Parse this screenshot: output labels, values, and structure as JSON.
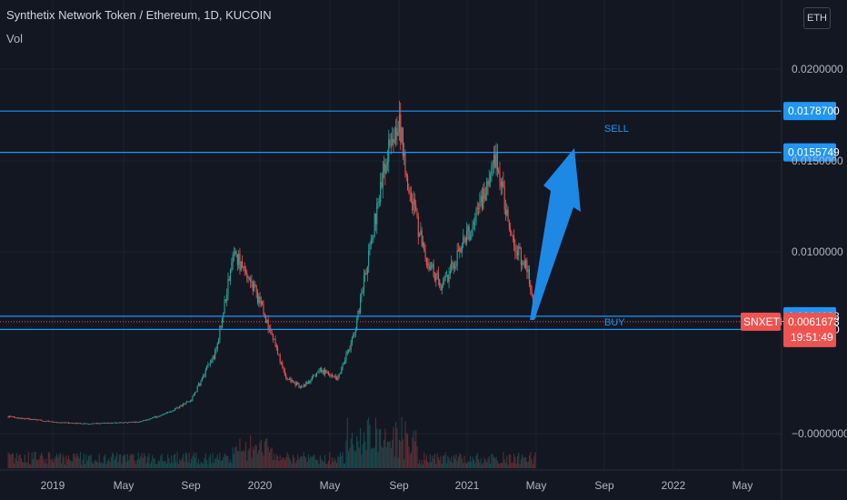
{
  "header": {
    "title": "Synthetix Network Token / Ethereum, 1D, KUCOIN",
    "volume_label": "Vol",
    "currency_button": "ETH"
  },
  "colors": {
    "background": "#131722",
    "up": "#26a69a",
    "down": "#ef5350",
    "level_line": "#2196f3",
    "arrow": "#1e88e5",
    "price_tag": "#ef5350"
  },
  "chart_data": {
    "type": "candlestick",
    "symbol_tag": "SNXETH",
    "last_price": "0.0061673",
    "countdown": "19:51:49",
    "x_ticks": [
      "2019",
      "May",
      "Sep",
      "2020",
      "May",
      "Sep",
      "2021",
      "May",
      "Sep",
      "2022",
      "May"
    ],
    "y_ticks": [
      "0.0200000",
      "0.0150000",
      "0.0100000",
      "−0.0000000"
    ],
    "horizontal_levels": [
      {
        "price": 0.01787,
        "label": "0.0178700"
      },
      {
        "price": 0.0155749,
        "label": "0.0155749"
      },
      {
        "price": 0.0064698,
        "label": "0.0064698"
      },
      {
        "price": 0.005739,
        "label": "0.0057390"
      }
    ],
    "annotations": [
      {
        "text": "SELL",
        "price": 0.0178
      },
      {
        "text": "BUY",
        "price": 0.0061
      }
    ],
    "price_path": [
      {
        "date": "2018-10-15",
        "close": 0.0009
      },
      {
        "date": "2019-01-01",
        "close": 0.0006
      },
      {
        "date": "2019-03-01",
        "close": 0.0005
      },
      {
        "date": "2019-06-01",
        "close": 0.0006
      },
      {
        "date": "2019-07-15",
        "close": 0.001
      },
      {
        "date": "2019-09-01",
        "close": 0.0018
      },
      {
        "date": "2019-10-15",
        "close": 0.0045
      },
      {
        "date": "2019-11-15",
        "close": 0.01
      },
      {
        "date": "2019-12-15",
        "close": 0.0085
      },
      {
        "date": "2020-01-15",
        "close": 0.006
      },
      {
        "date": "2020-02-15",
        "close": 0.003
      },
      {
        "date": "2020-03-15",
        "close": 0.0025
      },
      {
        "date": "2020-04-15",
        "close": 0.0035
      },
      {
        "date": "2020-05-15",
        "close": 0.003
      },
      {
        "date": "2020-06-15",
        "close": 0.0055
      },
      {
        "date": "2020-07-15",
        "close": 0.011
      },
      {
        "date": "2020-08-15",
        "close": 0.016
      },
      {
        "date": "2020-09-01",
        "close": 0.0175
      },
      {
        "date": "2020-09-15",
        "close": 0.014
      },
      {
        "date": "2020-10-15",
        "close": 0.01
      },
      {
        "date": "2020-11-15",
        "close": 0.008
      },
      {
        "date": "2020-12-15",
        "close": 0.01
      },
      {
        "date": "2021-01-15",
        "close": 0.012
      },
      {
        "date": "2021-02-10",
        "close": 0.0145
      },
      {
        "date": "2021-02-20",
        "close": 0.0152
      },
      {
        "date": "2021-03-15",
        "close": 0.011
      },
      {
        "date": "2021-04-15",
        "close": 0.009
      },
      {
        "date": "2021-04-30",
        "close": 0.0061673
      }
    ]
  }
}
